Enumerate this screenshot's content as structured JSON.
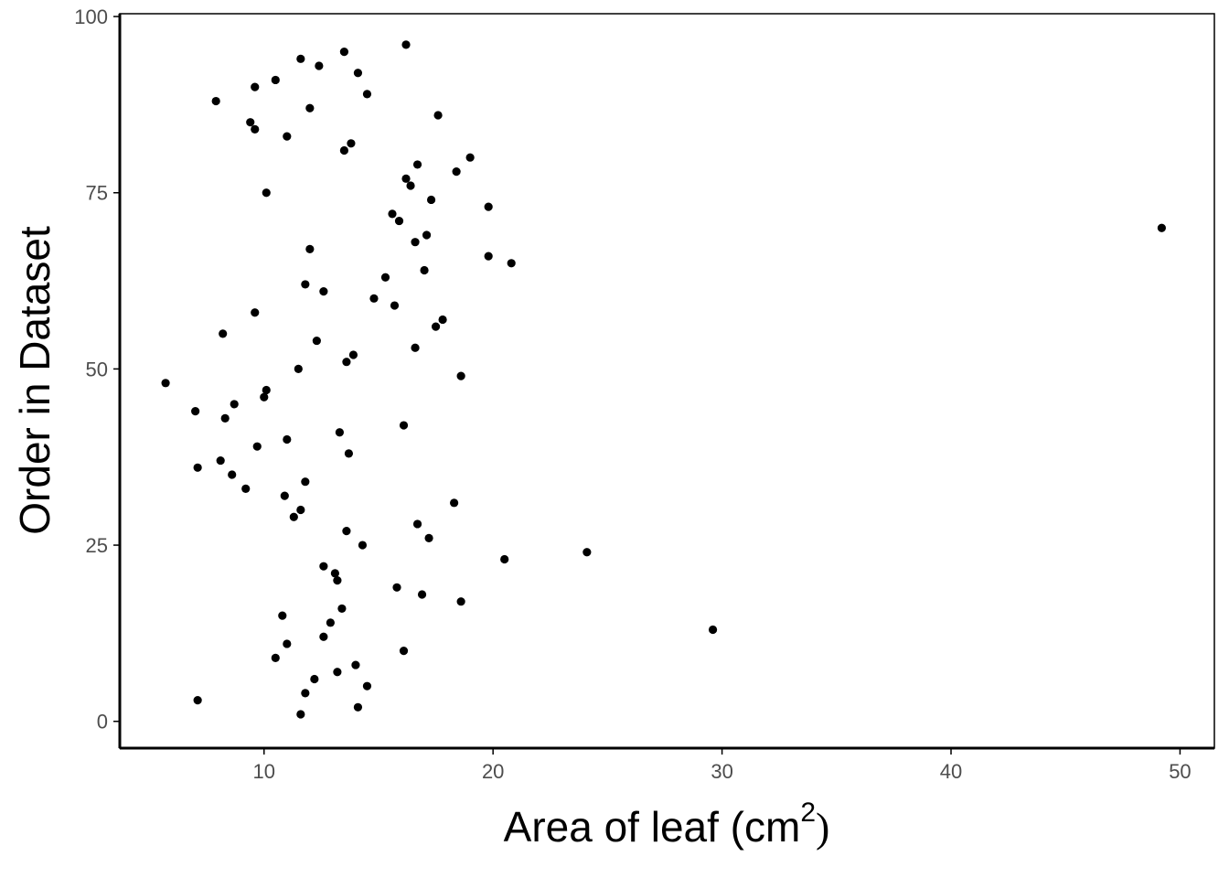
{
  "chart_data": {
    "type": "scatter",
    "title": "",
    "xlabel": "Area of leaf (cm",
    "xlabel_superscript": "2",
    "xlabel_close": ")",
    "ylabel": "Order in Dataset",
    "xlim": [
      3.7,
      51.5
    ],
    "ylim": [
      -3.8,
      100.4
    ],
    "x_ticks": [
      10,
      20,
      30,
      40,
      50
    ],
    "y_ticks": [
      0,
      25,
      50,
      75,
      100
    ],
    "grid": false,
    "legend": "none",
    "colors": {
      "point": "#000000",
      "tick_label": "#4d4d4d",
      "axis": "#000000"
    },
    "points": [
      {
        "x": 11.6,
        "y": 1
      },
      {
        "x": 14.1,
        "y": 2
      },
      {
        "x": 7.1,
        "y": 3
      },
      {
        "x": 11.8,
        "y": 4
      },
      {
        "x": 14.5,
        "y": 5
      },
      {
        "x": 12.2,
        "y": 6
      },
      {
        "x": 13.2,
        "y": 7
      },
      {
        "x": 14.0,
        "y": 8
      },
      {
        "x": 10.5,
        "y": 9
      },
      {
        "x": 16.1,
        "y": 10
      },
      {
        "x": 11.0,
        "y": 11
      },
      {
        "x": 12.6,
        "y": 12
      },
      {
        "x": 29.6,
        "y": 13
      },
      {
        "x": 12.9,
        "y": 14
      },
      {
        "x": 10.8,
        "y": 15
      },
      {
        "x": 13.4,
        "y": 16
      },
      {
        "x": 18.6,
        "y": 17
      },
      {
        "x": 16.9,
        "y": 18
      },
      {
        "x": 15.8,
        "y": 19
      },
      {
        "x": 13.2,
        "y": 20
      },
      {
        "x": 13.1,
        "y": 21
      },
      {
        "x": 12.6,
        "y": 22
      },
      {
        "x": 20.5,
        "y": 23
      },
      {
        "x": 24.1,
        "y": 24
      },
      {
        "x": 14.3,
        "y": 25
      },
      {
        "x": 17.2,
        "y": 26
      },
      {
        "x": 13.6,
        "y": 27
      },
      {
        "x": 16.7,
        "y": 28
      },
      {
        "x": 11.3,
        "y": 29
      },
      {
        "x": 11.6,
        "y": 30
      },
      {
        "x": 18.3,
        "y": 31
      },
      {
        "x": 10.9,
        "y": 32
      },
      {
        "x": 9.2,
        "y": 33
      },
      {
        "x": 11.8,
        "y": 34
      },
      {
        "x": 8.6,
        "y": 35
      },
      {
        "x": 7.1,
        "y": 36
      },
      {
        "x": 8.1,
        "y": 37
      },
      {
        "x": 13.7,
        "y": 38
      },
      {
        "x": 9.7,
        "y": 39
      },
      {
        "x": 11.0,
        "y": 40
      },
      {
        "x": 13.3,
        "y": 41
      },
      {
        "x": 16.1,
        "y": 42
      },
      {
        "x": 8.3,
        "y": 43
      },
      {
        "x": 7.0,
        "y": 44
      },
      {
        "x": 8.7,
        "y": 45
      },
      {
        "x": 10.0,
        "y": 46
      },
      {
        "x": 10.1,
        "y": 47
      },
      {
        "x": 5.7,
        "y": 48
      },
      {
        "x": 18.6,
        "y": 49
      },
      {
        "x": 11.5,
        "y": 50
      },
      {
        "x": 13.6,
        "y": 51
      },
      {
        "x": 13.9,
        "y": 52
      },
      {
        "x": 16.6,
        "y": 53
      },
      {
        "x": 12.3,
        "y": 54
      },
      {
        "x": 8.2,
        "y": 55
      },
      {
        "x": 17.5,
        "y": 56
      },
      {
        "x": 17.8,
        "y": 57
      },
      {
        "x": 9.6,
        "y": 58
      },
      {
        "x": 15.7,
        "y": 59
      },
      {
        "x": 14.8,
        "y": 60
      },
      {
        "x": 12.6,
        "y": 61
      },
      {
        "x": 11.8,
        "y": 62
      },
      {
        "x": 15.3,
        "y": 63
      },
      {
        "x": 17.0,
        "y": 64
      },
      {
        "x": 20.8,
        "y": 65
      },
      {
        "x": 19.8,
        "y": 66
      },
      {
        "x": 12.0,
        "y": 67
      },
      {
        "x": 16.6,
        "y": 68
      },
      {
        "x": 17.1,
        "y": 69
      },
      {
        "x": 49.2,
        "y": 70
      },
      {
        "x": 15.9,
        "y": 71
      },
      {
        "x": 15.6,
        "y": 72
      },
      {
        "x": 19.8,
        "y": 73
      },
      {
        "x": 17.3,
        "y": 74
      },
      {
        "x": 10.1,
        "y": 75
      },
      {
        "x": 16.4,
        "y": 76
      },
      {
        "x": 16.2,
        "y": 77
      },
      {
        "x": 18.4,
        "y": 78
      },
      {
        "x": 16.7,
        "y": 79
      },
      {
        "x": 19.0,
        "y": 80
      },
      {
        "x": 13.5,
        "y": 81
      },
      {
        "x": 13.8,
        "y": 82
      },
      {
        "x": 11.0,
        "y": 83
      },
      {
        "x": 9.6,
        "y": 84
      },
      {
        "x": 9.4,
        "y": 85
      },
      {
        "x": 17.6,
        "y": 86
      },
      {
        "x": 12.0,
        "y": 87
      },
      {
        "x": 7.9,
        "y": 88
      },
      {
        "x": 14.5,
        "y": 89
      },
      {
        "x": 9.6,
        "y": 90
      },
      {
        "x": 10.5,
        "y": 91
      },
      {
        "x": 14.1,
        "y": 92
      },
      {
        "x": 12.4,
        "y": 93
      },
      {
        "x": 11.6,
        "y": 94
      },
      {
        "x": 13.5,
        "y": 95
      },
      {
        "x": 16.2,
        "y": 96
      }
    ]
  }
}
